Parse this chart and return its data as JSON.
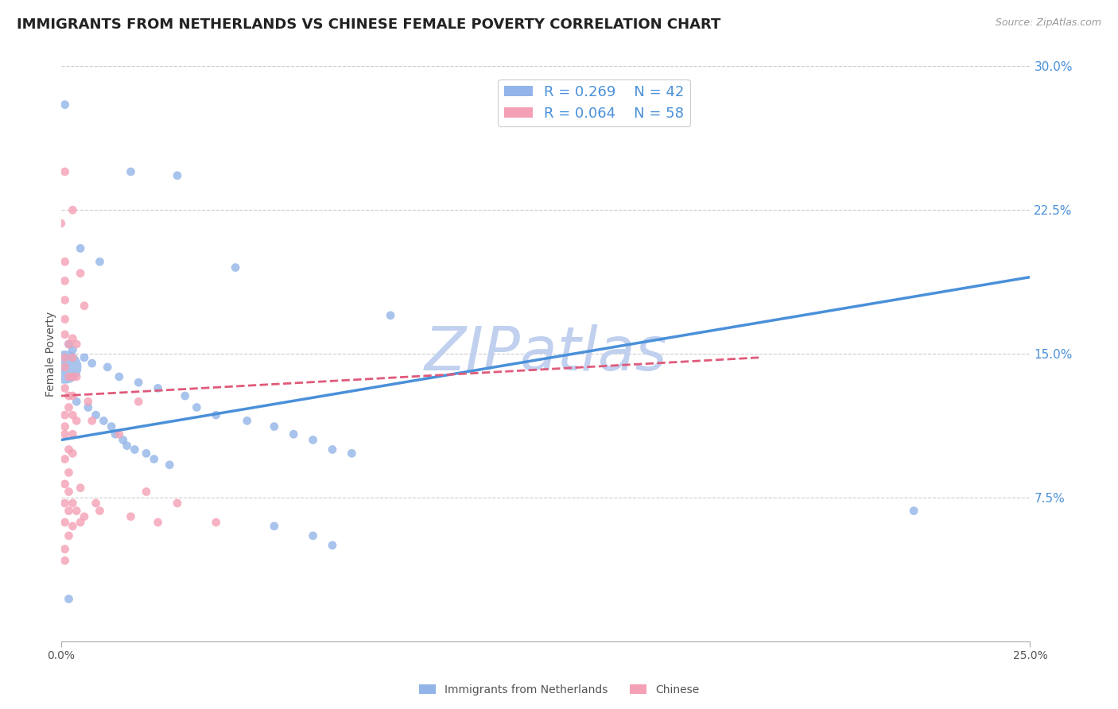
{
  "title": "IMMIGRANTS FROM NETHERLANDS VS CHINESE FEMALE POVERTY CORRELATION CHART",
  "source": "Source: ZipAtlas.com",
  "ylabel": "Female Poverty",
  "xlim": [
    0.0,
    0.25
  ],
  "ylim": [
    0.0,
    0.3
  ],
  "ytick_vals_right": [
    0.075,
    0.15,
    0.225,
    0.3
  ],
  "ytick_labels_right": [
    "7.5%",
    "15.0%",
    "22.5%",
    "30.0%"
  ],
  "watermark": "ZIPatlas",
  "netherlands_color": "#92b4e8",
  "chinese_color": "#f4a0b5",
  "trendline_netherlands_color": "#4a90d9",
  "trendline_chinese_color": "#e05a7a",
  "background_color": "#ffffff",
  "grid_color": "#cccccc",
  "title_fontsize": 13,
  "label_fontsize": 10,
  "legend_fontsize": 13,
  "watermark_color": "#c0d0ee",
  "watermark_fontsize": 55,
  "netherlands_points": [
    [
      0.001,
      0.28
    ],
    [
      0.018,
      0.245
    ],
    [
      0.03,
      0.243
    ],
    [
      0.045,
      0.195
    ],
    [
      0.005,
      0.205
    ],
    [
      0.01,
      0.198
    ],
    [
      0.085,
      0.17
    ],
    [
      0.002,
      0.155
    ],
    [
      0.003,
      0.152
    ],
    [
      0.006,
      0.148
    ],
    [
      0.008,
      0.145
    ],
    [
      0.012,
      0.143
    ],
    [
      0.015,
      0.138
    ],
    [
      0.02,
      0.135
    ],
    [
      0.025,
      0.132
    ],
    [
      0.032,
      0.128
    ],
    [
      0.004,
      0.125
    ],
    [
      0.007,
      0.122
    ],
    [
      0.009,
      0.118
    ],
    [
      0.011,
      0.115
    ],
    [
      0.013,
      0.112
    ],
    [
      0.014,
      0.108
    ],
    [
      0.016,
      0.105
    ],
    [
      0.017,
      0.102
    ],
    [
      0.019,
      0.1
    ],
    [
      0.022,
      0.098
    ],
    [
      0.024,
      0.095
    ],
    [
      0.028,
      0.092
    ],
    [
      0.035,
      0.122
    ],
    [
      0.04,
      0.118
    ],
    [
      0.048,
      0.115
    ],
    [
      0.055,
      0.112
    ],
    [
      0.06,
      0.108
    ],
    [
      0.065,
      0.105
    ],
    [
      0.07,
      0.1
    ],
    [
      0.075,
      0.098
    ],
    [
      0.055,
      0.06
    ],
    [
      0.065,
      0.055
    ],
    [
      0.07,
      0.05
    ],
    [
      0.002,
      0.022
    ],
    [
      0.22,
      0.068
    ],
    [
      0.001,
      0.143
    ]
  ],
  "netherlands_sizes": [
    60,
    60,
    60,
    60,
    60,
    60,
    60,
    60,
    60,
    60,
    60,
    60,
    60,
    60,
    60,
    60,
    60,
    60,
    60,
    60,
    60,
    60,
    60,
    60,
    60,
    60,
    60,
    60,
    60,
    60,
    60,
    60,
    60,
    60,
    60,
    60,
    60,
    60,
    60,
    60,
    60,
    900
  ],
  "chinese_points": [
    [
      0.0,
      0.218
    ],
    [
      0.001,
      0.245
    ],
    [
      0.001,
      0.198
    ],
    [
      0.001,
      0.188
    ],
    [
      0.001,
      0.178
    ],
    [
      0.001,
      0.168
    ],
    [
      0.001,
      0.16
    ],
    [
      0.002,
      0.155
    ],
    [
      0.001,
      0.148
    ],
    [
      0.001,
      0.143
    ],
    [
      0.002,
      0.138
    ],
    [
      0.001,
      0.132
    ],
    [
      0.002,
      0.128
    ],
    [
      0.002,
      0.122
    ],
    [
      0.001,
      0.118
    ],
    [
      0.001,
      0.112
    ],
    [
      0.001,
      0.108
    ],
    [
      0.002,
      0.1
    ],
    [
      0.001,
      0.095
    ],
    [
      0.002,
      0.088
    ],
    [
      0.001,
      0.082
    ],
    [
      0.002,
      0.078
    ],
    [
      0.001,
      0.072
    ],
    [
      0.002,
      0.068
    ],
    [
      0.001,
      0.062
    ],
    [
      0.002,
      0.055
    ],
    [
      0.001,
      0.048
    ],
    [
      0.001,
      0.042
    ],
    [
      0.003,
      0.225
    ],
    [
      0.003,
      0.158
    ],
    [
      0.003,
      0.148
    ],
    [
      0.003,
      0.138
    ],
    [
      0.003,
      0.128
    ],
    [
      0.003,
      0.118
    ],
    [
      0.003,
      0.108
    ],
    [
      0.003,
      0.098
    ],
    [
      0.003,
      0.072
    ],
    [
      0.003,
      0.06
    ],
    [
      0.004,
      0.155
    ],
    [
      0.004,
      0.138
    ],
    [
      0.004,
      0.115
    ],
    [
      0.004,
      0.068
    ],
    [
      0.005,
      0.192
    ],
    [
      0.005,
      0.08
    ],
    [
      0.005,
      0.062
    ],
    [
      0.006,
      0.175
    ],
    [
      0.006,
      0.065
    ],
    [
      0.007,
      0.125
    ],
    [
      0.008,
      0.115
    ],
    [
      0.009,
      0.072
    ],
    [
      0.01,
      0.068
    ],
    [
      0.015,
      0.108
    ],
    [
      0.018,
      0.065
    ],
    [
      0.02,
      0.125
    ],
    [
      0.022,
      0.078
    ],
    [
      0.025,
      0.062
    ],
    [
      0.03,
      0.072
    ],
    [
      0.04,
      0.062
    ]
  ],
  "nl_trendline": [
    [
      0.0,
      0.105
    ],
    [
      0.25,
      0.19
    ]
  ],
  "cn_trendline": [
    [
      0.0,
      0.128
    ],
    [
      0.18,
      0.148
    ]
  ]
}
